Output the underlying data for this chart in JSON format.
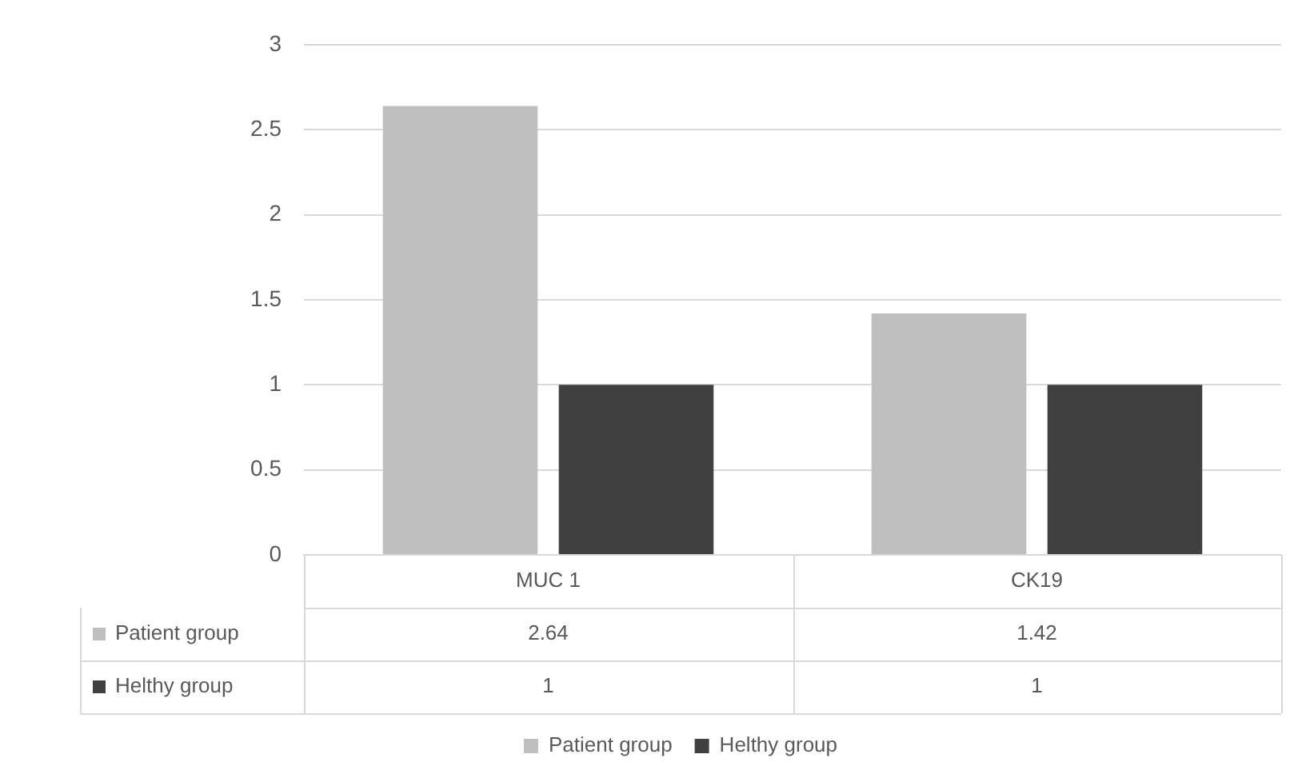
{
  "chart_data": {
    "type": "bar",
    "categories": [
      "MUC 1",
      "CK19"
    ],
    "series": [
      {
        "name": "Patient group",
        "color": "#bfbfbf",
        "values": [
          2.64,
          1.42
        ]
      },
      {
        "name": "Helthy group",
        "color": "#404040",
        "values": [
          1,
          1
        ]
      }
    ],
    "ylim": [
      0,
      3
    ],
    "yticks": [
      0,
      0.5,
      1,
      1.5,
      2,
      2.5,
      3
    ],
    "grid": "y",
    "legend": "bottom",
    "data_labels": true
  }
}
